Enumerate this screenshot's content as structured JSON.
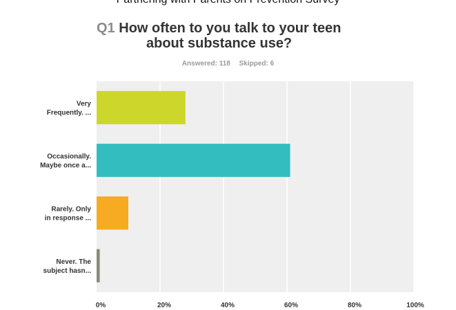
{
  "survey_title": "Partnering with Parents on Prevention Survey",
  "question": {
    "number": "Q1",
    "text_line1": "How often to you talk to your teen",
    "text_line2": "about substance use?"
  },
  "stats": {
    "answered": "Answered: 118",
    "skipped": "Skipped: 6"
  },
  "chart_data": {
    "type": "bar",
    "orientation": "horizontal",
    "categories": [
      [
        "Very",
        "Frequently. ..."
      ],
      [
        "Occasionally.",
        "Maybe once a..."
      ],
      [
        "Rarely. Only",
        "in response ..."
      ],
      [
        "Never. The",
        "subject hasn..."
      ]
    ],
    "values": [
      28,
      61,
      10,
      1
    ],
    "colors": [
      "#cdd62a",
      "#33bdbf",
      "#f7ab23",
      "#8a8a7a"
    ],
    "xlim": [
      0,
      100
    ],
    "xticks": [
      0,
      20,
      40,
      60,
      80,
      100
    ],
    "xtick_labels": [
      "0%",
      "20%",
      "40%",
      "60%",
      "80%",
      "100%"
    ],
    "plot_background": "#efefef",
    "grid": true
  }
}
